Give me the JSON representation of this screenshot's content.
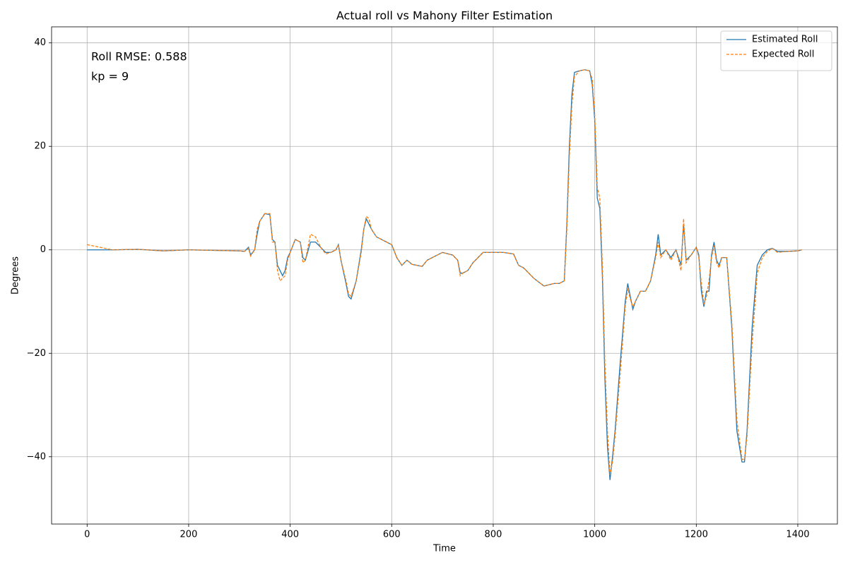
{
  "chart_data": {
    "type": "line",
    "title": "Actual roll vs Mahony Filter Estimation",
    "xlabel": "Time",
    "ylabel": "Degrees",
    "annotations": [
      "Roll RMSE: 0.588",
      "kp = 9"
    ],
    "grid": true,
    "legend": "upper right",
    "xlim": [
      -70,
      1478
    ],
    "ylim": [
      -53,
      43.1
    ],
    "xticks": [
      0,
      200,
      400,
      600,
      800,
      1000,
      1200,
      1400
    ],
    "yticks": [
      {
        "value": -40,
        "label": "−40"
      },
      {
        "value": -20,
        "label": "−20"
      },
      0,
      20,
      40
    ],
    "x": [
      0,
      50,
      100,
      150,
      200,
      250,
      300,
      310,
      318,
      322,
      330,
      335,
      340,
      350,
      360,
      365,
      370,
      375,
      380,
      385,
      390,
      395,
      400,
      410,
      420,
      425,
      430,
      440,
      450,
      460,
      470,
      480,
      490,
      495,
      500,
      510,
      515,
      520,
      530,
      540,
      545,
      550,
      555,
      560,
      570,
      580,
      590,
      600,
      610,
      620,
      630,
      640,
      650,
      660,
      670,
      680,
      700,
      720,
      730,
      735,
      740,
      750,
      760,
      780,
      800,
      820,
      840,
      850,
      860,
      880,
      900,
      920,
      930,
      940,
      945,
      950,
      955,
      960,
      970,
      980,
      990,
      995,
      1000,
      1005,
      1010,
      1015,
      1020,
      1025,
      1030,
      1035,
      1040,
      1050,
      1060,
      1065,
      1070,
      1075,
      1080,
      1090,
      1100,
      1110,
      1120,
      1125,
      1130,
      1140,
      1150,
      1160,
      1170,
      1175,
      1180,
      1190,
      1200,
      1205,
      1210,
      1215,
      1220,
      1225,
      1230,
      1235,
      1240,
      1245,
      1250,
      1260,
      1270,
      1280,
      1290,
      1295,
      1300,
      1310,
      1320,
      1330,
      1340,
      1350,
      1360,
      1380,
      1400,
      1408
    ],
    "series": [
      {
        "name": "Estimated Roll",
        "color": "#1f77b4",
        "linestyle": "solid",
        "values": [
          0,
          0,
          0.1,
          -0.2,
          0,
          -0.1,
          -0.2,
          -0.3,
          0.5,
          -1,
          0,
          3,
          5.5,
          7,
          6.8,
          2,
          1.5,
          -3,
          -4,
          -5,
          -4,
          -1.5,
          -0.5,
          2,
          1.5,
          -1.5,
          -2,
          1.5,
          1.5,
          0.5,
          -0.5,
          -0.5,
          0,
          1,
          -2,
          -6.5,
          -9,
          -9.5,
          -6,
          0,
          4,
          6,
          5,
          4,
          2.5,
          2,
          1.5,
          1,
          -1.5,
          -3,
          -2,
          -2.8,
          -3,
          -3.2,
          -2,
          -1.5,
          -0.5,
          -1,
          -2,
          -4.5,
          -4.5,
          -4,
          -2.5,
          -0.5,
          -0.5,
          -0.5,
          -0.8,
          -3,
          -3.5,
          -5.5,
          -7,
          -6.5,
          -6.5,
          -6,
          5,
          20,
          30,
          34.3,
          34.6,
          34.8,
          34.6,
          32,
          25,
          10,
          8,
          -5,
          -25,
          -38,
          -44.5,
          -40,
          -35,
          -22,
          -10,
          -6.5,
          -9,
          -11.5,
          -10,
          -8,
          -8,
          -6,
          -1,
          3,
          -1,
          0,
          -1.5,
          0,
          -3,
          5,
          -2,
          -1,
          0.5,
          -1,
          -8,
          -11,
          -8,
          -8,
          -1,
          1.5,
          -2,
          -3,
          -1.5,
          -1.5,
          -15,
          -35,
          -41,
          -41,
          -35,
          -15,
          -3,
          -1,
          0,
          0.3,
          -0.3,
          -0.3,
          -0.2,
          0
        ]
      },
      {
        "name": "Expected Roll",
        "color": "#ff7f0e",
        "linestyle": "dashed",
        "values": [
          1,
          0,
          0.1,
          -0.2,
          0,
          -0.1,
          -0.2,
          -0.3,
          0.3,
          -1.2,
          0,
          4,
          5.5,
          7,
          7,
          1.5,
          1.5,
          -4,
          -6,
          -5.5,
          -5,
          -2,
          -0.5,
          2,
          1.5,
          -2.5,
          -2,
          3,
          2.5,
          0.5,
          -0.8,
          -0.5,
          0,
          1,
          -2,
          -6,
          -8.5,
          -9,
          -6,
          -0.5,
          4,
          6.5,
          6,
          4,
          2.5,
          2,
          1.5,
          1,
          -1.5,
          -3,
          -2,
          -2.8,
          -3,
          -3.2,
          -2,
          -1.5,
          -0.5,
          -1,
          -2,
          -5,
          -4.5,
          -4,
          -2.5,
          -0.5,
          -0.5,
          -0.5,
          -0.8,
          -3,
          -3.5,
          -5.5,
          -7,
          -6.5,
          -6.5,
          -6,
          4,
          18,
          28,
          33.5,
          34.6,
          34.8,
          34.6,
          33,
          26,
          12,
          10,
          -3,
          -22,
          -35,
          -43.5,
          -41,
          -36,
          -24,
          -11,
          -7.5,
          -9.5,
          -11,
          -10,
          -8,
          -8,
          -6,
          -1.5,
          1.5,
          -1.5,
          0,
          -2,
          0,
          -4,
          6,
          -2.5,
          -1,
          0.5,
          -1.5,
          -6.5,
          -10.5,
          -9,
          -6,
          -1.5,
          0.8,
          -2.5,
          -3.5,
          -1.5,
          -1.5,
          -14,
          -33,
          -40.5,
          -40.5,
          -36,
          -18,
          -4.5,
          -1.5,
          -0.3,
          0.3,
          -0.5,
          -0.3,
          -0.2,
          0
        ]
      }
    ]
  }
}
